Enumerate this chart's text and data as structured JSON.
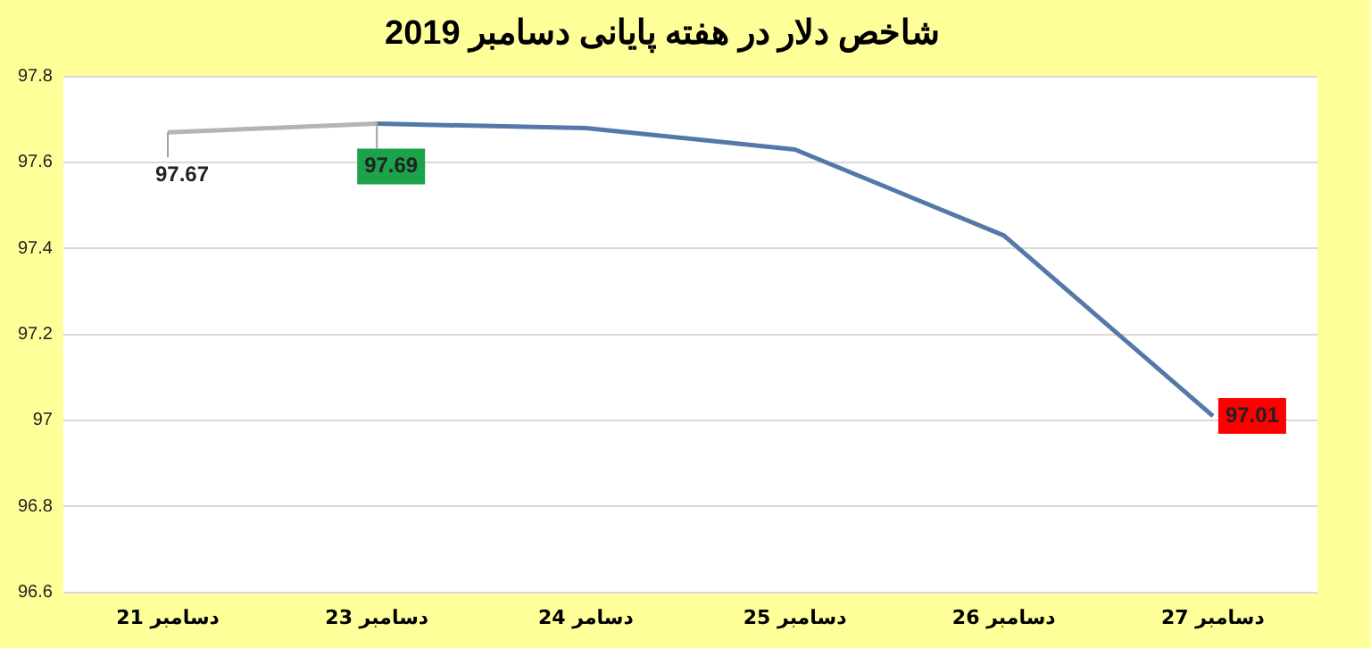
{
  "chart_data": {
    "type": "line",
    "title": "شاخص دلار در هفته پایانی دسامبر 2019",
    "categories": [
      "21 دسامبر",
      "23 دسامبر",
      "24 دسامر",
      "25 دسامبر",
      "26 دسامبر",
      "27 دسامبر"
    ],
    "series": [
      {
        "color": "#b4b4b4",
        "values": [
          97.67,
          97.69,
          null,
          null,
          null,
          null
        ],
        "value_labels": [
          "97.67",
          null,
          null,
          null,
          null,
          null
        ]
      },
      {
        "color": "#5479a8",
        "values": [
          null,
          97.69,
          97.68,
          97.63,
          97.43,
          97.01
        ],
        "value_labels": [
          null,
          "97.69",
          null,
          null,
          null,
          "97.01"
        ]
      }
    ],
    "ylim": [
      96.6,
      97.8
    ],
    "yticks": [
      96.6,
      96.8,
      97,
      97.2,
      97.4,
      97.6,
      97.8
    ],
    "grid": "y",
    "legend": false,
    "marker": "none",
    "line_style": "solid"
  }
}
